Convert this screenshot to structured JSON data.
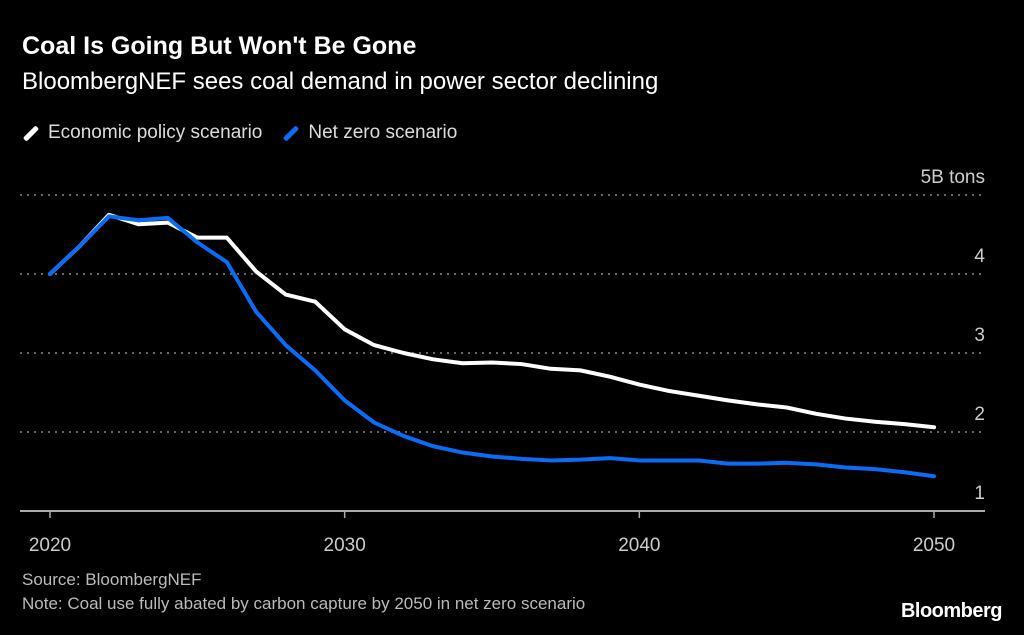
{
  "chart_data": {
    "type": "line",
    "title": "Coal Is Going But Won't Be Gone",
    "subtitle": "BloombergNEF sees coal demand in power sector declining",
    "ylabel": "5B tons",
    "ylim": [
      1,
      5
    ],
    "xlim": [
      2020,
      2050
    ],
    "grid": true,
    "legend": "top-left",
    "x_ticks": [
      "2020",
      "2030",
      "2040",
      "2050"
    ],
    "y_ticks": [
      "1",
      "2",
      "3",
      "4",
      "5B tons"
    ],
    "x": [
      2020,
      2021,
      2022,
      2023,
      2024,
      2025,
      2026,
      2027,
      2028,
      2029,
      2030,
      2031,
      2032,
      2033,
      2034,
      2035,
      2036,
      2037,
      2038,
      2039,
      2040,
      2041,
      2042,
      2043,
      2044,
      2045,
      2046,
      2047,
      2048,
      2049,
      2050
    ],
    "series": [
      {
        "name": "Economic policy scenario",
        "color": "#ffffff",
        "values": [
          4.0,
          4.35,
          4.75,
          4.63,
          4.65,
          4.46,
          4.46,
          4.03,
          3.74,
          3.65,
          3.3,
          3.1,
          3.0,
          2.92,
          2.87,
          2.88,
          2.86,
          2.8,
          2.78,
          2.7,
          2.6,
          2.52,
          2.46,
          2.4,
          2.35,
          2.31,
          2.23,
          2.17,
          2.13,
          2.1,
          2.06
        ]
      },
      {
        "name": "Net zero scenario",
        "color": "#0a6cf5",
        "values": [
          4.0,
          4.35,
          4.73,
          4.68,
          4.71,
          4.4,
          4.15,
          3.52,
          3.1,
          2.78,
          2.4,
          2.12,
          1.95,
          1.82,
          1.74,
          1.69,
          1.66,
          1.64,
          1.65,
          1.67,
          1.64,
          1.64,
          1.64,
          1.6,
          1.6,
          1.61,
          1.59,
          1.55,
          1.53,
          1.49,
          1.44
        ]
      }
    ]
  },
  "footer": {
    "source": "Source: BloombergNEF",
    "note": "Note: Coal use fully abated by carbon capture by 2050 in net zero scenario",
    "logo": "Bloomberg"
  }
}
